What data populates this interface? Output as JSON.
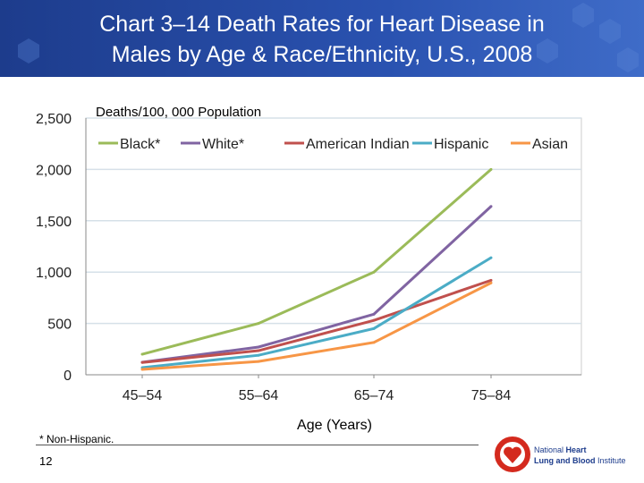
{
  "header": {
    "title_line1": "Chart 3–14  Death Rates for Heart Disease in",
    "title_line2": "Males by Age & Race/Ethnicity, U.S., 2008"
  },
  "footer": {
    "note": "* Non-Hispanic.",
    "page": "12",
    "logo_text_1": "National Heart",
    "logo_text_2": "Lung and Blood Institute"
  },
  "chart_data": {
    "type": "line",
    "ylabel": "Deaths/100, 000 Population",
    "xlabel": "Age (Years)",
    "categories": [
      "45–54",
      "55–64",
      "65–74",
      "75–84"
    ],
    "ylim": [
      0,
      2500
    ],
    "yticks": [
      0,
      500,
      1000,
      1500,
      2000,
      2500
    ],
    "ytick_labels": [
      "0",
      "500",
      "1,000",
      "1,500",
      "2,000",
      "2,500"
    ],
    "grid": true,
    "legend": "top",
    "series": [
      {
        "name": "Black*",
        "color": "#9bbb59",
        "values": [
          200,
          500,
          1000,
          2000
        ]
      },
      {
        "name": "White*",
        "color": "#8064a2",
        "values": [
          122,
          270,
          590,
          1640
        ]
      },
      {
        "name": "American Indian",
        "color": "#c0504d",
        "values": [
          120,
          235,
          530,
          920
        ]
      },
      {
        "name": "Hispanic",
        "color": "#4bacc6",
        "values": [
          70,
          190,
          450,
          1140
        ]
      },
      {
        "name": "Asian",
        "color": "#f79646",
        "values": [
          52,
          130,
          315,
          895
        ]
      }
    ]
  }
}
